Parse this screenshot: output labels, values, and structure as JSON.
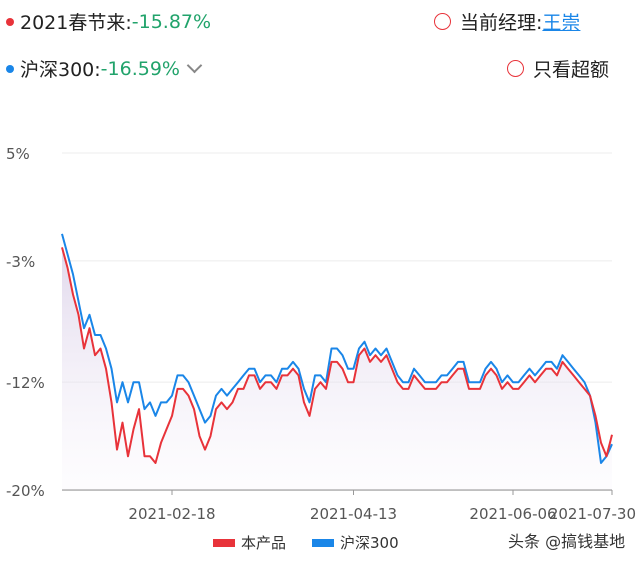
{
  "header": {
    "row1": {
      "label": "2021春节来:",
      "value": "-15.87%",
      "dot_color": "#e8333a"
    },
    "row2": {
      "label": "沪深300:",
      "value": "-16.59%",
      "dot_color": "#1a86e8"
    },
    "manager_label": "当前经理:",
    "manager_name": "王崇",
    "excess_label": "只看超额"
  },
  "legend": {
    "product": "本产品",
    "index": "沪深300"
  },
  "watermark": "头条 @搞钱基地",
  "chart_data": {
    "type": "line",
    "ylim": [
      -20,
      5
    ],
    "yticks": [
      5,
      -3,
      -12,
      -20
    ],
    "ytick_labels": [
      "5%",
      "-3%",
      "-12%",
      "-20%"
    ],
    "xtick_labels": [
      "2021-02-18",
      "2021-04-13",
      "2021-06-06",
      "2021-07-30"
    ],
    "xtick_positions": [
      0.2,
      0.53,
      0.82,
      1.0
    ],
    "legend_position": "bottom",
    "series": [
      {
        "name": "本产品",
        "color": "#e8333a",
        "x": [
          0,
          0.01,
          0.02,
          0.03,
          0.04,
          0.05,
          0.06,
          0.07,
          0.08,
          0.09,
          0.1,
          0.11,
          0.12,
          0.13,
          0.14,
          0.15,
          0.16,
          0.17,
          0.18,
          0.19,
          0.2,
          0.21,
          0.22,
          0.23,
          0.24,
          0.25,
          0.26,
          0.27,
          0.28,
          0.29,
          0.3,
          0.31,
          0.32,
          0.33,
          0.34,
          0.35,
          0.36,
          0.37,
          0.38,
          0.39,
          0.4,
          0.41,
          0.42,
          0.43,
          0.44,
          0.45,
          0.46,
          0.47,
          0.48,
          0.49,
          0.5,
          0.51,
          0.52,
          0.53,
          0.54,
          0.55,
          0.56,
          0.57,
          0.58,
          0.59,
          0.6,
          0.61,
          0.62,
          0.63,
          0.64,
          0.65,
          0.66,
          0.67,
          0.68,
          0.69,
          0.7,
          0.71,
          0.72,
          0.73,
          0.74,
          0.75,
          0.76,
          0.77,
          0.78,
          0.79,
          0.8,
          0.81,
          0.82,
          0.83,
          0.84,
          0.85,
          0.86,
          0.87,
          0.88,
          0.89,
          0.9,
          0.91,
          0.92,
          0.93,
          0.94,
          0.95,
          0.96,
          0.97,
          0.98,
          0.99,
          1.0
        ],
        "values": [
          -2.0,
          -3.5,
          -5.5,
          -7.0,
          -9.5,
          -8.0,
          -10.0,
          -9.5,
          -11.0,
          -13.5,
          -17.0,
          -15.0,
          -17.5,
          -15.5,
          -14.0,
          -17.5,
          -17.5,
          -18.0,
          -16.5,
          -15.5,
          -14.5,
          -12.5,
          -12.5,
          -13.0,
          -14.0,
          -16.0,
          -17.0,
          -16.0,
          -14.0,
          -13.5,
          -14.0,
          -13.5,
          -12.5,
          -12.5,
          -11.5,
          -11.5,
          -12.5,
          -12.0,
          -12.0,
          -12.5,
          -11.5,
          -11.5,
          -11.0,
          -11.5,
          -13.5,
          -14.5,
          -12.5,
          -12.0,
          -12.5,
          -10.5,
          -10.5,
          -11.0,
          -12.0,
          -12.0,
          -10.0,
          -9.5,
          -10.5,
          -10.0,
          -10.5,
          -10.0,
          -11.0,
          -12.0,
          -12.5,
          -12.5,
          -11.5,
          -12.0,
          -12.5,
          -12.5,
          -12.5,
          -12.0,
          -12.0,
          -11.5,
          -11.0,
          -11.0,
          -12.5,
          -12.5,
          -12.5,
          -11.5,
          -11.0,
          -11.5,
          -12.5,
          -12.0,
          -12.5,
          -12.5,
          -12.0,
          -11.5,
          -12.0,
          -11.5,
          -11.0,
          -11.0,
          -11.5,
          -10.5,
          -11.0,
          -11.5,
          -12.0,
          -12.5,
          -13.0,
          -14.5,
          -16.5,
          -17.5,
          -15.9
        ]
      },
      {
        "name": "沪深300",
        "color": "#1a86e8",
        "x": [
          0,
          0.01,
          0.02,
          0.03,
          0.04,
          0.05,
          0.06,
          0.07,
          0.08,
          0.09,
          0.1,
          0.11,
          0.12,
          0.13,
          0.14,
          0.15,
          0.16,
          0.17,
          0.18,
          0.19,
          0.2,
          0.21,
          0.22,
          0.23,
          0.24,
          0.25,
          0.26,
          0.27,
          0.28,
          0.29,
          0.3,
          0.31,
          0.32,
          0.33,
          0.34,
          0.35,
          0.36,
          0.37,
          0.38,
          0.39,
          0.4,
          0.41,
          0.42,
          0.43,
          0.44,
          0.45,
          0.46,
          0.47,
          0.48,
          0.49,
          0.5,
          0.51,
          0.52,
          0.53,
          0.54,
          0.55,
          0.56,
          0.57,
          0.58,
          0.59,
          0.6,
          0.61,
          0.62,
          0.63,
          0.64,
          0.65,
          0.66,
          0.67,
          0.68,
          0.69,
          0.7,
          0.71,
          0.72,
          0.73,
          0.74,
          0.75,
          0.76,
          0.77,
          0.78,
          0.79,
          0.8,
          0.81,
          0.82,
          0.83,
          0.84,
          0.85,
          0.86,
          0.87,
          0.88,
          0.89,
          0.9,
          0.91,
          0.92,
          0.93,
          0.94,
          0.95,
          0.96,
          0.97,
          0.98,
          0.99,
          1.0
        ],
        "values": [
          -1.0,
          -2.5,
          -4.0,
          -6.0,
          -8.0,
          -7.0,
          -8.5,
          -8.5,
          -9.5,
          -11.0,
          -13.5,
          -12.0,
          -13.5,
          -12.0,
          -12.0,
          -14.0,
          -13.5,
          -14.5,
          -13.5,
          -13.5,
          -13.0,
          -11.5,
          -11.5,
          -12.0,
          -13.0,
          -14.0,
          -15.0,
          -14.5,
          -13.0,
          -12.5,
          -13.0,
          -12.5,
          -12.0,
          -11.5,
          -11.0,
          -11.0,
          -12.0,
          -11.5,
          -11.5,
          -12.0,
          -11.0,
          -11.0,
          -10.5,
          -11.0,
          -12.5,
          -13.5,
          -11.5,
          -11.5,
          -12.0,
          -9.5,
          -9.5,
          -10.0,
          -11.0,
          -11.0,
          -9.5,
          -9.0,
          -10.0,
          -9.5,
          -10.0,
          -9.5,
          -10.5,
          -11.5,
          -12.0,
          -12.0,
          -11.0,
          -11.5,
          -12.0,
          -12.0,
          -12.0,
          -11.5,
          -11.5,
          -11.0,
          -10.5,
          -10.5,
          -12.0,
          -12.0,
          -12.0,
          -11.0,
          -10.5,
          -11.0,
          -12.0,
          -11.5,
          -12.0,
          -12.0,
          -11.5,
          -11.0,
          -11.5,
          -11.0,
          -10.5,
          -10.5,
          -11.0,
          -10.0,
          -10.5,
          -11.0,
          -11.5,
          -12.0,
          -13.0,
          -15.0,
          -18.0,
          -17.5,
          -16.6
        ]
      }
    ]
  }
}
